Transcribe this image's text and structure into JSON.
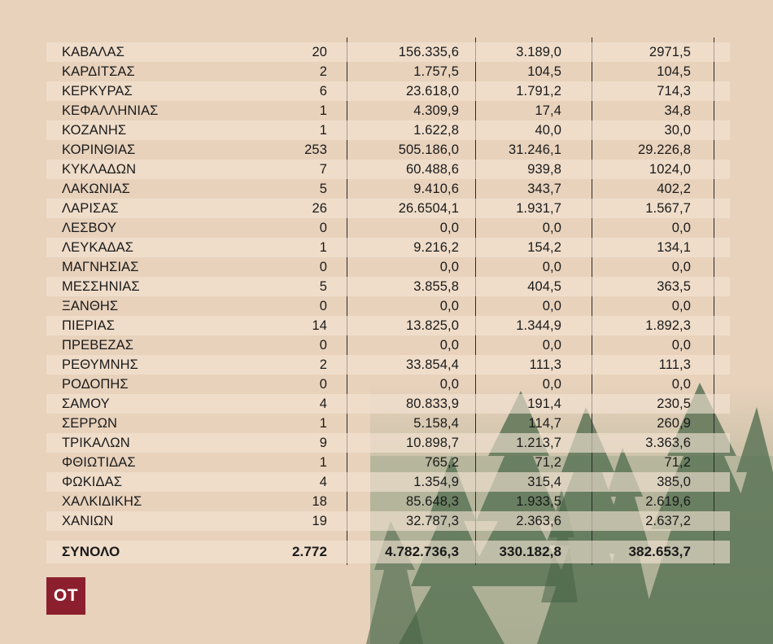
{
  "table": {
    "rows": [
      {
        "name": "ΚΑΒΑΛΑΣ",
        "count": "20",
        "v1": "156.335,6",
        "v2": "3.189,0",
        "v3": "2971,5"
      },
      {
        "name": "ΚΑΡΔΙΤΣΑΣ",
        "count": "2",
        "v1": "1.757,5",
        "v2": "104,5",
        "v3": "104,5"
      },
      {
        "name": "ΚΕΡΚΥΡΑΣ",
        "count": "6",
        "v1": "23.618,0",
        "v2": "1.791,2",
        "v3": "714,3"
      },
      {
        "name": "ΚΕΦΑΛΛΗΝΙΑΣ",
        "count": "1",
        "v1": "4.309,9",
        "v2": "17,4",
        "v3": "34,8"
      },
      {
        "name": "ΚΟΖΑΝΗΣ",
        "count": "1",
        "v1": "1.622,8",
        "v2": "40,0",
        "v3": "30,0"
      },
      {
        "name": "ΚΟΡΙΝΘΙΑΣ",
        "count": "253",
        "v1": "505.186,0",
        "v2": "31.246,1",
        "v3": "29.226,8"
      },
      {
        "name": "ΚΥΚΛΑΔΩΝ",
        "count": "7",
        "v1": "60.488,6",
        "v2": "939,8",
        "v3": "1024,0"
      },
      {
        "name": "ΛΑΚΩΝΙΑΣ",
        "count": "5",
        "v1": "9.410,6",
        "v2": "343,7",
        "v3": "402,2"
      },
      {
        "name": "ΛΑΡΙΣΑΣ",
        "count": "26",
        "v1": "26.6504,1",
        "v2": "1.931,7",
        "v3": "1.567,7"
      },
      {
        "name": "ΛΕΣΒΟΥ",
        "count": "0",
        "v1": "0,0",
        "v2": "0,0",
        "v3": "0,0"
      },
      {
        "name": "ΛΕΥΚΑΔΑΣ",
        "count": "1",
        "v1": "9.216,2",
        "v2": "154,2",
        "v3": "134,1"
      },
      {
        "name": "ΜΑΓΝΗΣΙΑΣ",
        "count": "0",
        "v1": "0,0",
        "v2": "0,0",
        "v3": "0,0"
      },
      {
        "name": "ΜΕΣΣΗΝΙΑΣ",
        "count": "5",
        "v1": "3.855,8",
        "v2": "404,5",
        "v3": "363,5"
      },
      {
        "name": "ΞΑΝΘΗΣ",
        "count": "0",
        "v1": "0,0",
        "v2": "0,0",
        "v3": "0,0"
      },
      {
        "name": "ΠΙΕΡΙΑΣ",
        "count": "14",
        "v1": "13.825,0",
        "v2": "1.344,9",
        "v3": "1.892,3"
      },
      {
        "name": "ΠΡΕΒΕΖΑΣ",
        "count": "0",
        "v1": "0,0",
        "v2": "0,0",
        "v3": "0,0"
      },
      {
        "name": "ΡΕΘΥΜΝΗΣ",
        "count": "2",
        "v1": "33.854,4",
        "v2": "111,3",
        "v3": "111,3"
      },
      {
        "name": "ΡΟΔΟΠΗΣ",
        "count": "0",
        "v1": "0,0",
        "v2": "0,0",
        "v3": "0,0"
      },
      {
        "name": "ΣΑΜΟΥ",
        "count": "4",
        "v1": "80.833,9",
        "v2": "191,4",
        "v3": "230,5"
      },
      {
        "name": "ΣΕΡΡΩΝ",
        "count": "1",
        "v1": "5.158,4",
        "v2": "114,7",
        "v3": "260,9"
      },
      {
        "name": "ΤΡΙΚΑΛΩΝ",
        "count": "9",
        "v1": "10.898,7",
        "v2": "1.213,7",
        "v3": "3.363,6"
      },
      {
        "name": "ΦΘΙΩΤΙΔΑΣ",
        "count": "1",
        "v1": "765,2",
        "v2": "71,2",
        "v3": "71,2"
      },
      {
        "name": "ΦΩΚΙΔΑΣ",
        "count": "4",
        "v1": "1.354,9",
        "v2": "315,4",
        "v3": "385,0"
      },
      {
        "name": "ΧΑΛΚΙΔΙΚΗΣ",
        "count": "18",
        "v1": "85.648,3",
        "v2": "1.933,5",
        "v3": "2.619,6"
      },
      {
        "name": "ΧΑΝΙΩΝ",
        "count": "19",
        "v1": "32.787,3",
        "v2": "2.363,6",
        "v3": "2.637,2"
      }
    ],
    "total": {
      "name": "ΣΥΝΟΛΟ",
      "count": "2.772",
      "v1": "4.782.736,3",
      "v2": "330.182,8",
      "v3": "382.653,7"
    }
  },
  "logo": {
    "text": "OT"
  },
  "colors": {
    "background": "#e8d2bc",
    "row_band": "#f3e4d4",
    "logo_bg": "#8c1f2e",
    "trees": "#4f6a4c"
  },
  "icons": [
    "forest-background-image",
    "ot-logo"
  ]
}
